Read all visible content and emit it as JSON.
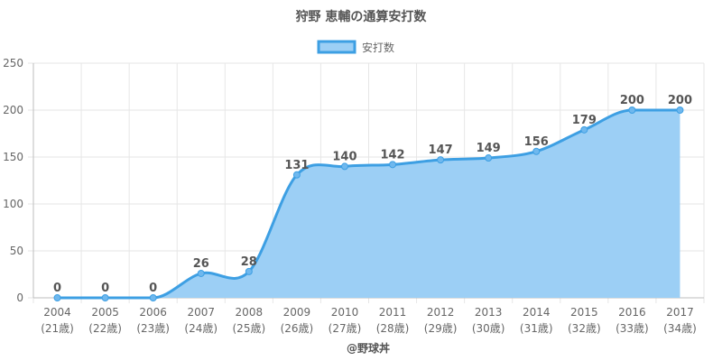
{
  "chart_data": {
    "type": "area",
    "title": "狩野 恵輔の通算安打数",
    "legend": {
      "position": "top",
      "entries": [
        "安打数"
      ]
    },
    "categories": [
      "2004",
      "2005",
      "2006",
      "2007",
      "2008",
      "2009",
      "2010",
      "2011",
      "2012",
      "2013",
      "2014",
      "2015",
      "2016",
      "2017"
    ],
    "category_sublabels": [
      "(21歳)",
      "(22歳)",
      "(23歳)",
      "(24歳)",
      "(25歳)",
      "(26歳)",
      "(27歳)",
      "(28歳)",
      "(29歳)",
      "(30歳)",
      "(31歳)",
      "(32歳)",
      "(33歳)",
      "(34歳)"
    ],
    "series": [
      {
        "name": "安打数",
        "values": [
          0,
          0,
          0,
          26,
          28,
          131,
          140,
          142,
          147,
          149,
          156,
          179,
          200,
          200
        ]
      }
    ],
    "ylim": [
      0,
      250
    ],
    "yticks": [
      0,
      50,
      100,
      150,
      200,
      250
    ],
    "grid": true,
    "colors": {
      "line": "#3d9fe3",
      "fill": "#9ccff5",
      "grid": "#e6e6e6",
      "text": "#666666"
    },
    "credit": "@野球丼"
  }
}
